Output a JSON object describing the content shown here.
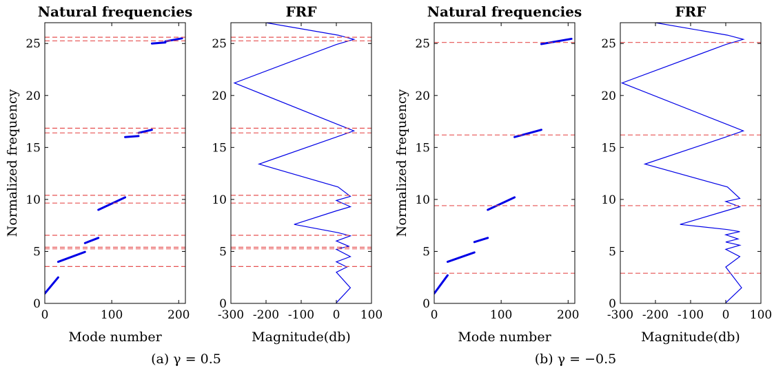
{
  "figure": {
    "captions": [
      "(a) γ = 0.5",
      "(b) γ = −0.5"
    ]
  },
  "chart_data": [
    {
      "type": "scatter",
      "title": "Natural frequencies",
      "xlabel": "Mode number",
      "ylabel": "Normalized frequency",
      "xlim": [
        0,
        210
      ],
      "ylim": [
        0,
        27
      ],
      "xticks": [
        "0",
        "100",
        "200"
      ],
      "yticks": [
        "0",
        "5",
        "10",
        "15",
        "20",
        "25"
      ],
      "series": [
        {
          "segments": [
            {
              "x": [
                0,
                20
              ],
              "y": [
                0.95,
                2.5
              ]
            },
            {
              "x": [
                20,
                60
              ],
              "y": [
                4.0,
                4.95
              ]
            },
            {
              "x": [
                60,
                80
              ],
              "y": [
                5.8,
                6.3
              ]
            },
            {
              "x": [
                80,
                120
              ],
              "y": [
                9.0,
                10.2
              ]
            },
            {
              "x": [
                120,
                140
              ],
              "y": [
                16.0,
                16.1
              ]
            },
            {
              "x": [
                140,
                160
              ],
              "y": [
                16.4,
                16.7
              ]
            },
            {
              "x": [
                160,
                180
              ],
              "y": [
                25.0,
                25.1
              ]
            },
            {
              "x": [
                180,
                205
              ],
              "y": [
                25.2,
                25.5
              ]
            }
          ]
        }
      ],
      "hlines": [
        3.55,
        5.25,
        5.4,
        6.55,
        9.65,
        10.4,
        16.4,
        16.85,
        25.25,
        25.6
      ]
    },
    {
      "type": "line",
      "title": "FRF",
      "xlabel": "Magnitude(db)",
      "ylabel": "",
      "xlim": [
        -300,
        100
      ],
      "ylim": [
        0,
        27
      ],
      "xticks": [
        "-300",
        "-200",
        "-100",
        "0",
        "100"
      ],
      "yticks": [
        "0",
        "5",
        "10",
        "15",
        "20",
        "25"
      ],
      "curve": {
        "x": [
          0,
          40,
          0,
          30,
          0,
          40,
          0,
          35,
          0,
          40,
          5,
          -120,
          0,
          40,
          0,
          40,
          5,
          -220,
          0,
          50,
          5,
          -290,
          0,
          50,
          5,
          -200
        ],
        "y": [
          0.05,
          1.5,
          3.0,
          3.5,
          4.0,
          4.5,
          5.2,
          5.5,
          6.0,
          6.5,
          6.8,
          7.6,
          8.9,
          9.3,
          9.9,
          10.3,
          11.2,
          13.4,
          16.0,
          16.6,
          17.2,
          21.2,
          24.9,
          25.4,
          25.8,
          27.0
        ]
      },
      "hlines": [
        3.55,
        5.25,
        5.4,
        6.55,
        9.65,
        10.4,
        16.4,
        16.85,
        25.25,
        25.6
      ]
    },
    {
      "type": "scatter",
      "title": "Natural frequencies",
      "xlabel": "Mode number",
      "ylabel": "Normalized frequency",
      "xlim": [
        0,
        210
      ],
      "ylim": [
        0,
        27
      ],
      "xticks": [
        "0",
        "100",
        "200"
      ],
      "yticks": [
        "0",
        "5",
        "10",
        "15",
        "20",
        "25"
      ],
      "series": [
        {
          "segments": [
            {
              "x": [
                0,
                20
              ],
              "y": [
                0.95,
                2.7
              ]
            },
            {
              "x": [
                20,
                60
              ],
              "y": [
                4.0,
                4.9
              ]
            },
            {
              "x": [
                60,
                80
              ],
              "y": [
                5.9,
                6.3
              ]
            },
            {
              "x": [
                80,
                120
              ],
              "y": [
                9.0,
                10.2
              ]
            },
            {
              "x": [
                120,
                160
              ],
              "y": [
                16.0,
                16.7
              ]
            },
            {
              "x": [
                160,
                205
              ],
              "y": [
                24.95,
                25.45
              ]
            }
          ]
        }
      ],
      "hlines": [
        2.9,
        9.4,
        16.2,
        25.1
      ]
    },
    {
      "type": "line",
      "title": "FRF",
      "xlabel": "Magnitude(db)",
      "ylabel": "",
      "xlim": [
        -300,
        100
      ],
      "ylim": [
        0,
        27
      ],
      "xticks": [
        "-300",
        "-200",
        "-100",
        "0",
        "100"
      ],
      "yticks": [
        "0",
        "5",
        "10",
        "15",
        "20",
        "25"
      ],
      "curve": {
        "x": [
          0,
          45,
          0,
          40,
          0,
          40,
          0,
          35,
          0,
          40,
          5,
          -130,
          0,
          40,
          0,
          40,
          5,
          -230,
          0,
          50,
          5,
          -295,
          0,
          50,
          5,
          -200
        ],
        "y": [
          0.05,
          1.5,
          3.5,
          4.5,
          5.2,
          5.6,
          5.9,
          6.2,
          6.6,
          6.9,
          7.1,
          7.6,
          8.9,
          9.3,
          9.8,
          10.1,
          11.2,
          13.4,
          16.0,
          16.6,
          17.2,
          21.2,
          24.9,
          25.4,
          25.8,
          27.0
        ]
      },
      "hlines": [
        2.9,
        9.4,
        16.2,
        25.1
      ]
    }
  ]
}
